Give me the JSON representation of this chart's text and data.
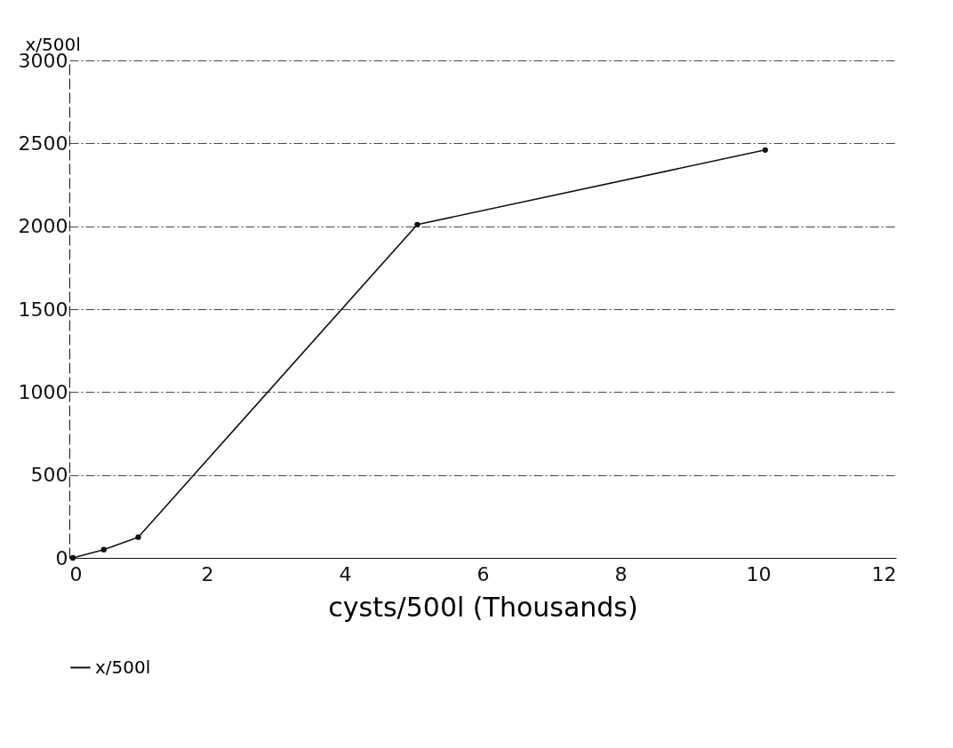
{
  "chart_data": {
    "type": "line",
    "xlabel": "cysts/500l (Thousands)",
    "ylabel": "x/500l",
    "x": [
      0.05,
      0.5,
      1,
      5.05,
      10.1
    ],
    "series": [
      {
        "name": "x/500l",
        "color": "#111111",
        "values": [
          0,
          50,
          125,
          2010,
          2460
        ]
      }
    ],
    "xlim": [
      0,
      12
    ],
    "xticks": [
      0,
      2,
      4,
      6,
      8,
      10,
      12
    ],
    "ylim": [
      0,
      3000
    ],
    "yticks": [
      0,
      500,
      1000,
      1500,
      2000,
      2500,
      3000
    ],
    "grid": "y",
    "legend": "bottom",
    "marker": "circle",
    "line_style": "solid"
  }
}
